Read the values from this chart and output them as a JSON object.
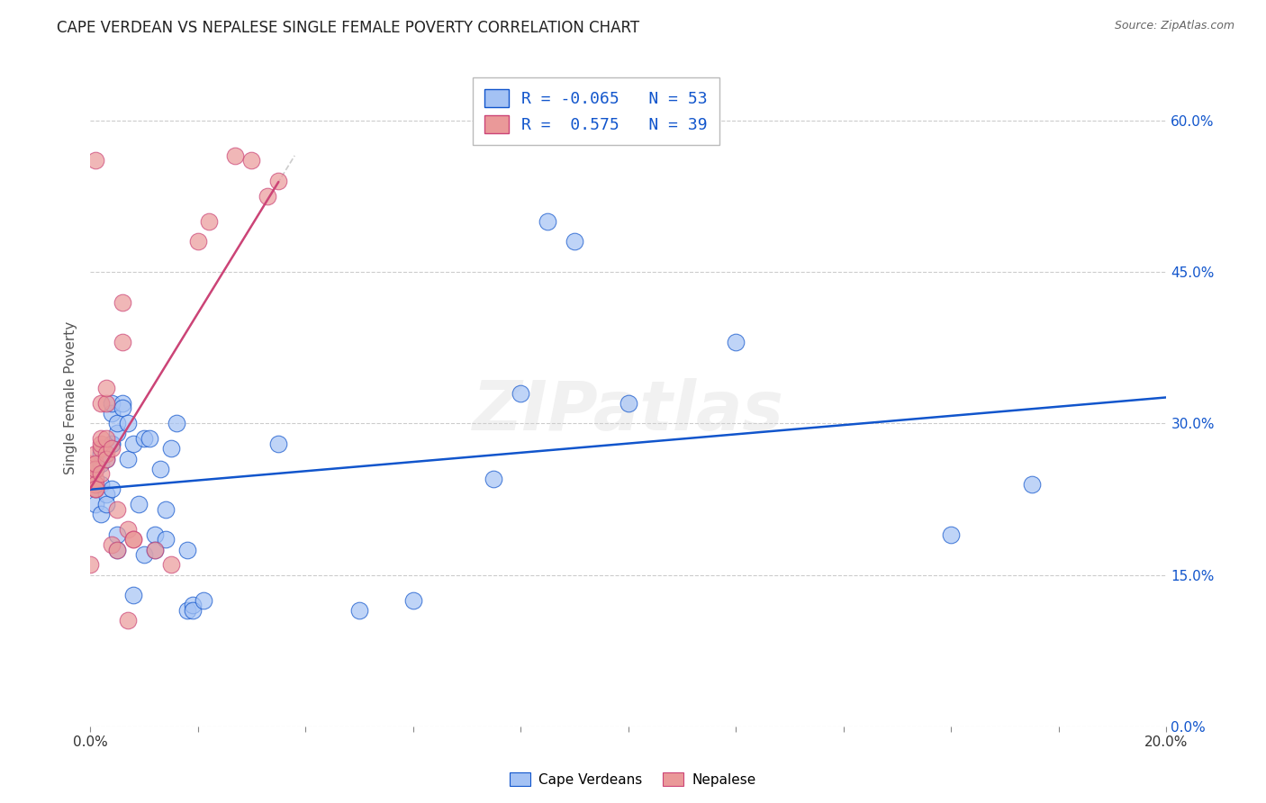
{
  "title": "CAPE VERDEAN VS NEPALESE SINGLE FEMALE POVERTY CORRELATION CHART",
  "source": "Source: ZipAtlas.com",
  "ylabel": "Single Female Poverty",
  "legend_label_blue": "Cape Verdeans",
  "legend_label_pink": "Nepalese",
  "r_blue": "-0.065",
  "n_blue": "53",
  "r_pink": "0.575",
  "n_pink": "39",
  "blue_color": "#a4c2f4",
  "pink_color": "#ea9999",
  "blue_line_color": "#1155cc",
  "pink_line_color": "#cc4477",
  "blue_scatter": [
    [
      0.0,
      0.245
    ],
    [
      0.001,
      0.22
    ],
    [
      0.001,
      0.255
    ],
    [
      0.001,
      0.235
    ],
    [
      0.002,
      0.21
    ],
    [
      0.002,
      0.26
    ],
    [
      0.002,
      0.27
    ],
    [
      0.002,
      0.24
    ],
    [
      0.003,
      0.23
    ],
    [
      0.003,
      0.265
    ],
    [
      0.003,
      0.22
    ],
    [
      0.004,
      0.235
    ],
    [
      0.004,
      0.28
    ],
    [
      0.004,
      0.31
    ],
    [
      0.004,
      0.32
    ],
    [
      0.004,
      0.28
    ],
    [
      0.005,
      0.19
    ],
    [
      0.005,
      0.175
    ],
    [
      0.005,
      0.29
    ],
    [
      0.005,
      0.3
    ],
    [
      0.006,
      0.32
    ],
    [
      0.006,
      0.315
    ],
    [
      0.007,
      0.3
    ],
    [
      0.007,
      0.265
    ],
    [
      0.008,
      0.28
    ],
    [
      0.008,
      0.13
    ],
    [
      0.009,
      0.22
    ],
    [
      0.01,
      0.17
    ],
    [
      0.01,
      0.285
    ],
    [
      0.011,
      0.285
    ],
    [
      0.012,
      0.19
    ],
    [
      0.012,
      0.175
    ],
    [
      0.013,
      0.255
    ],
    [
      0.014,
      0.185
    ],
    [
      0.014,
      0.215
    ],
    [
      0.015,
      0.275
    ],
    [
      0.016,
      0.3
    ],
    [
      0.018,
      0.115
    ],
    [
      0.018,
      0.175
    ],
    [
      0.019,
      0.12
    ],
    [
      0.019,
      0.115
    ],
    [
      0.021,
      0.125
    ],
    [
      0.035,
      0.28
    ],
    [
      0.05,
      0.115
    ],
    [
      0.06,
      0.125
    ],
    [
      0.075,
      0.245
    ],
    [
      0.08,
      0.33
    ],
    [
      0.085,
      0.5
    ],
    [
      0.09,
      0.48
    ],
    [
      0.1,
      0.32
    ],
    [
      0.12,
      0.38
    ],
    [
      0.16,
      0.19
    ],
    [
      0.175,
      0.24
    ]
  ],
  "pink_scatter": [
    [
      0.0,
      0.16
    ],
    [
      0.0,
      0.245
    ],
    [
      0.0,
      0.26
    ],
    [
      0.001,
      0.56
    ],
    [
      0.001,
      0.27
    ],
    [
      0.001,
      0.235
    ],
    [
      0.001,
      0.245
    ],
    [
      0.001,
      0.255
    ],
    [
      0.001,
      0.26
    ],
    [
      0.001,
      0.24
    ],
    [
      0.001,
      0.235
    ],
    [
      0.002,
      0.25
    ],
    [
      0.002,
      0.275
    ],
    [
      0.002,
      0.28
    ],
    [
      0.002,
      0.32
    ],
    [
      0.002,
      0.285
    ],
    [
      0.003,
      0.32
    ],
    [
      0.003,
      0.335
    ],
    [
      0.003,
      0.27
    ],
    [
      0.003,
      0.265
    ],
    [
      0.003,
      0.285
    ],
    [
      0.004,
      0.275
    ],
    [
      0.004,
      0.18
    ],
    [
      0.005,
      0.215
    ],
    [
      0.005,
      0.175
    ],
    [
      0.006,
      0.42
    ],
    [
      0.006,
      0.38
    ],
    [
      0.007,
      0.105
    ],
    [
      0.007,
      0.195
    ],
    [
      0.008,
      0.185
    ],
    [
      0.008,
      0.185
    ],
    [
      0.012,
      0.175
    ],
    [
      0.015,
      0.16
    ],
    [
      0.02,
      0.48
    ],
    [
      0.022,
      0.5
    ],
    [
      0.027,
      0.565
    ],
    [
      0.03,
      0.56
    ],
    [
      0.033,
      0.525
    ],
    [
      0.035,
      0.54
    ]
  ],
  "xlim": [
    0.0,
    0.2
  ],
  "ylim": [
    0.0,
    0.65
  ],
  "x_ticks": [
    0.0,
    0.02,
    0.04,
    0.06,
    0.08,
    0.1,
    0.12,
    0.14,
    0.16,
    0.18,
    0.2
  ],
  "y_ticks": [
    0.0,
    0.15,
    0.3,
    0.45,
    0.6
  ],
  "background_color": "#ffffff",
  "grid_color": "#cccccc",
  "title_fontsize": 12,
  "axis_label_fontsize": 11
}
